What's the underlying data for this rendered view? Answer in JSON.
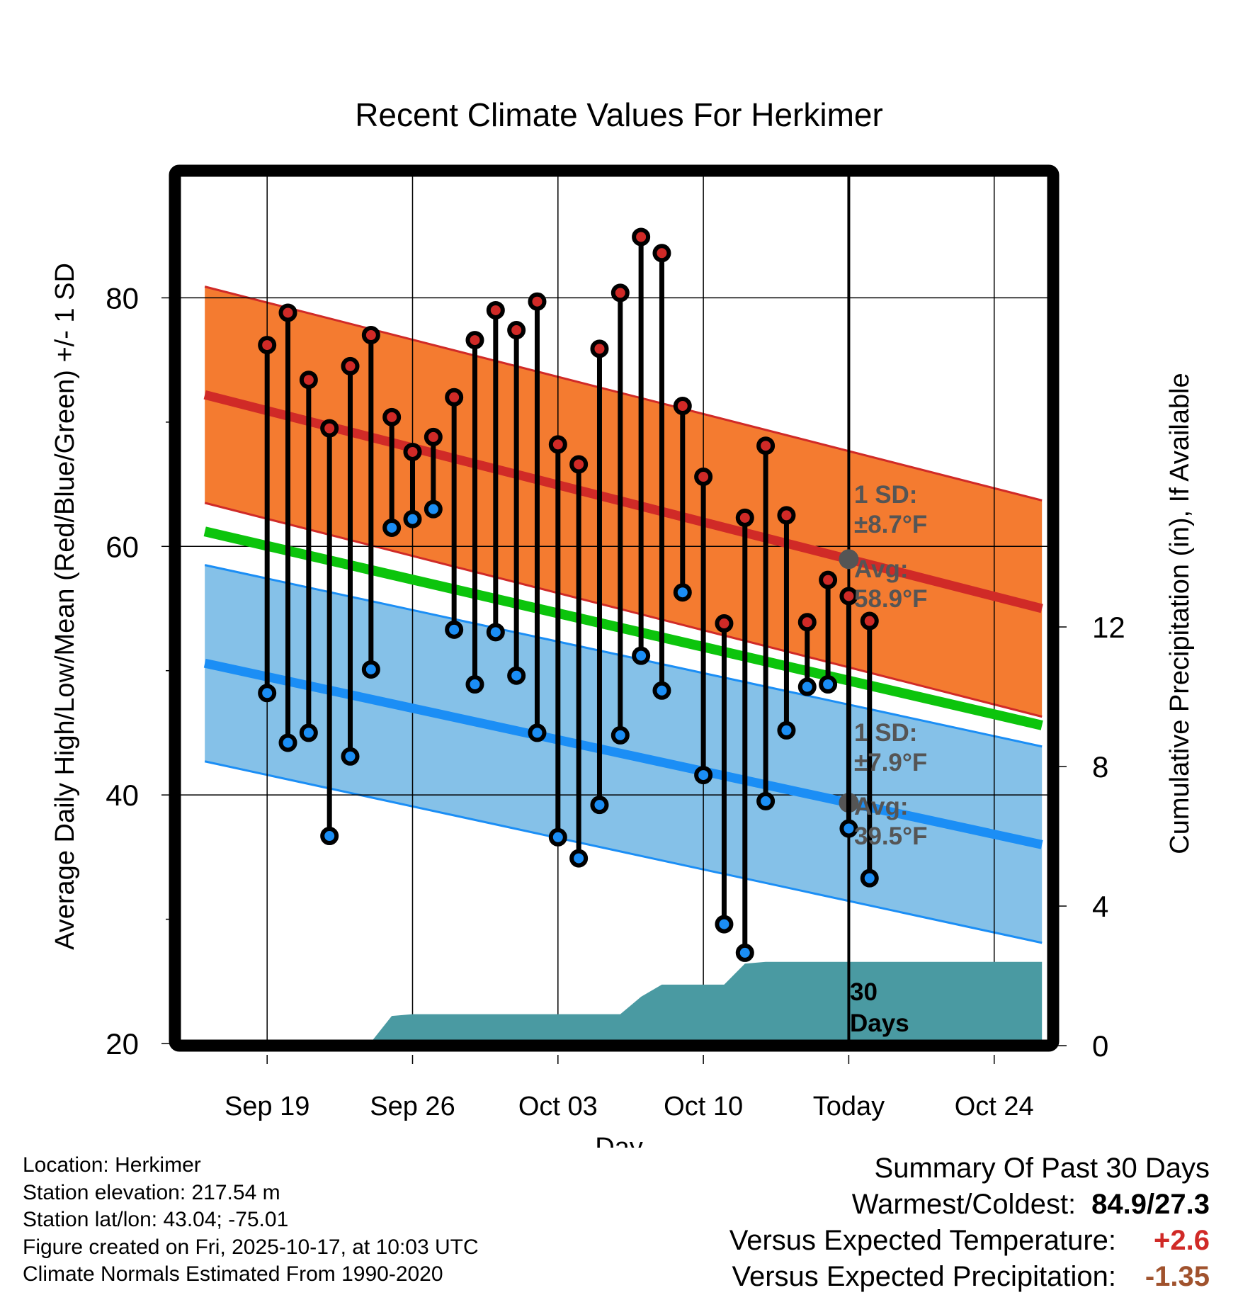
{
  "chart_data": {
    "type": "line",
    "title": "Recent Climate Values For Herkimer",
    "xlabel": "Day",
    "ylabel": "Average Daily High/Low/Mean (Red/Blue/Green) +/- 1 SD",
    "y2label": "Cumulative Precipitation (in), If Available",
    "ylim": [
      20,
      90
    ],
    "y2lim": [
      0,
      14.5
    ],
    "xlim": [
      -4.2,
      37.6
    ],
    "yticks": [
      20,
      40,
      60,
      80
    ],
    "y2ticks": [
      0,
      4,
      8,
      12
    ],
    "xtick_labels": [
      {
        "day": 0,
        "label": "Sep 19"
      },
      {
        "day": 7,
        "label": "Sep 26"
      },
      {
        "day": 14,
        "label": "Oct 03"
      },
      {
        "day": 21,
        "label": "Oct 10"
      },
      {
        "day": 28,
        "label": "Today"
      },
      {
        "day": 35,
        "label": "Oct 24"
      }
    ],
    "today_day": 28,
    "highs": [
      76.2,
      78.8,
      73.4,
      69.5,
      74.5,
      77.0,
      70.4,
      67.6,
      68.8,
      72.0,
      76.6,
      79.0,
      77.4,
      79.7,
      68.2,
      66.6,
      75.9,
      80.4,
      84.9,
      83.6,
      71.3,
      65.6,
      53.8,
      62.3,
      68.1,
      62.5,
      53.9,
      57.3,
      56.0,
      54.0
    ],
    "lows": [
      48.2,
      44.2,
      45.0,
      36.7,
      43.1,
      50.1,
      61.5,
      62.2,
      63.0,
      53.3,
      48.9,
      53.1,
      49.6,
      45.0,
      36.6,
      34.9,
      39.2,
      44.8,
      51.2,
      48.4,
      56.3,
      41.6,
      29.6,
      27.3,
      39.5,
      45.2,
      48.7,
      48.9,
      37.3,
      33.3
    ],
    "normals": {
      "start_day": -3.0,
      "end_day": 37.3,
      "high_mean": [
        72.2,
        55.0
      ],
      "high_sd": 8.7,
      "low_mean": [
        50.6,
        36.0
      ],
      "low_sd": 7.9,
      "mean_mean": [
        61.2,
        45.6
      ]
    },
    "precip_cumulative": [
      [
        -3.0,
        0.0
      ],
      [
        1.5,
        0.0
      ],
      [
        4.5,
        0.0
      ],
      [
        5.0,
        0.1
      ],
      [
        6.0,
        0.85
      ],
      [
        7.0,
        0.9
      ],
      [
        17.0,
        0.9
      ],
      [
        18.0,
        1.4
      ],
      [
        19.0,
        1.75
      ],
      [
        22.0,
        1.75
      ],
      [
        23.0,
        2.35
      ],
      [
        24.0,
        2.4
      ],
      [
        37.3,
        2.4
      ]
    ],
    "annotations": {
      "high_sd_label": "1 SD:",
      "high_sd_value": "±8.7°F",
      "high_avg_label": "Avg:",
      "high_avg_value": "58.9°F",
      "low_sd_label": "1 SD:",
      "low_sd_value": "±7.9°F",
      "low_avg_label": "Avg:",
      "low_avg_value": "39.5°F",
      "days_line1": "30",
      "days_line2": "Days"
    },
    "colors": {
      "high_band": "#f47b30",
      "high_line": "#d02a27",
      "low_band": "#85c1e8",
      "low_line": "#1b8ef5",
      "mean_line": "#0cc40c",
      "precip": "#4a9aa2",
      "annotation": "#555555"
    }
  },
  "info": {
    "location": "Location: Herkimer",
    "elevation": "Station elevation: 217.54 m",
    "latlon": "Station lat/lon: 43.04; -75.01",
    "created": "Figure created on Fri, 2025-10-17, at 10:03 UTC",
    "normals": "Climate Normals Estimated From 1990-2020"
  },
  "summary": {
    "title": "Summary Of Past 30 Days",
    "warm_cold_label": "Warmest/Coldest:",
    "warm_cold_value": "84.9/27.3",
    "temp_label": "Versus Expected Temperature:",
    "temp_value": "+2.6",
    "temp_color": "#d02a27",
    "precip_label": "Versus Expected Precipitation:",
    "precip_value": "-1.35",
    "precip_color": "#a0522d"
  }
}
